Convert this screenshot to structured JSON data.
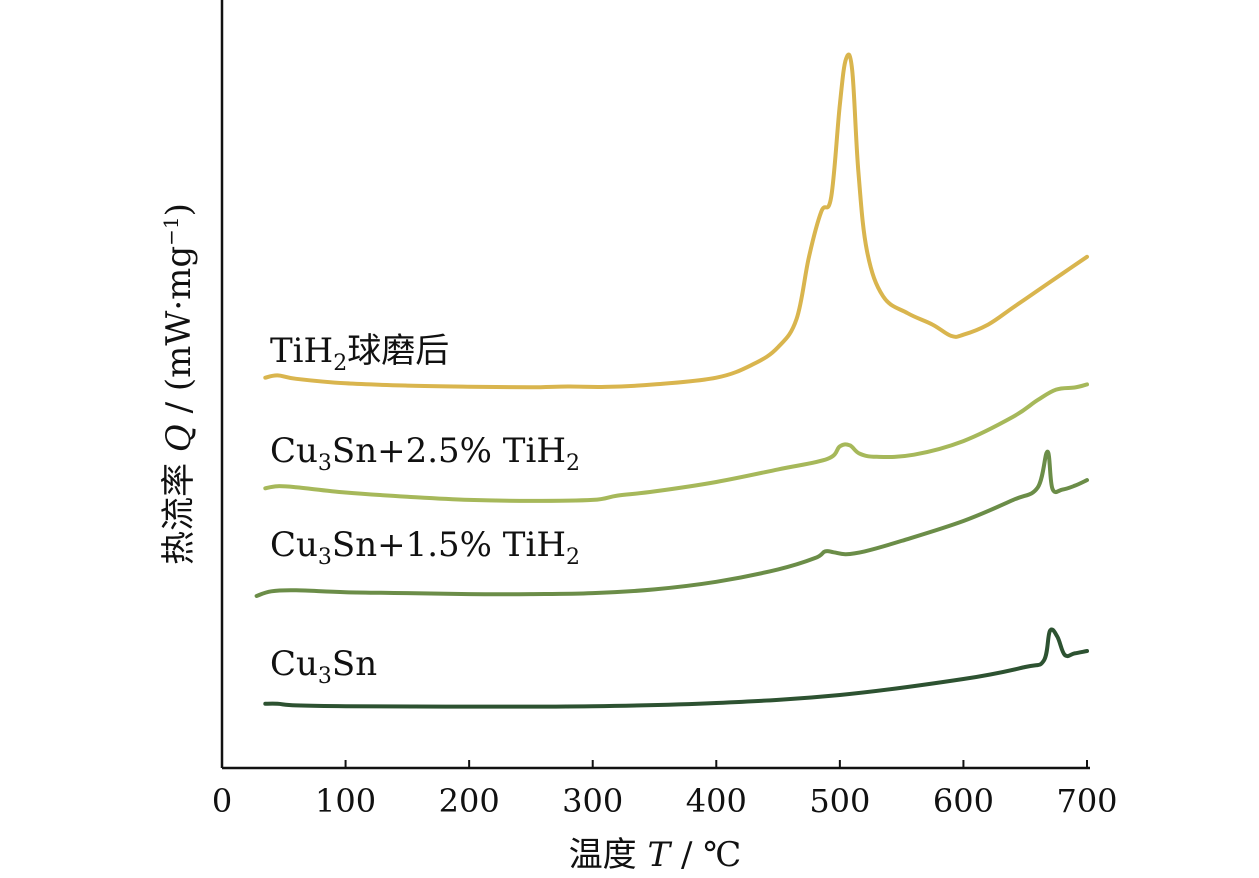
{
  "chart_data": {
    "type": "line",
    "xlabel": "温度 T / ℃",
    "xlabel_parts": {
      "prefix": "温度 ",
      "symbol": "T",
      "suffix": " / ℃"
    },
    "ylabel": "热流率 Q / (mW·mg⁻¹)",
    "ylabel_parts": {
      "prefix": "热流率 ",
      "symbol": "Q",
      "unit": " / (mW·mg",
      "unit_sup": "−1",
      "unit_close": ")"
    },
    "xlim": [
      0,
      700
    ],
    "xticks": [
      0,
      100,
      200,
      300,
      400,
      500,
      600,
      700
    ],
    "grid": false,
    "legend": "inline labels left of curves",
    "series": [
      {
        "name": "TiH2球磨后",
        "label_parts": [
          "TiH",
          "2",
          "球磨后"
        ],
        "color": "#d9b54e",
        "points": [
          [
            35,
            0.18
          ],
          [
            45,
            0.2
          ],
          [
            60,
            0.17
          ],
          [
            100,
            0.13
          ],
          [
            150,
            0.11
          ],
          [
            200,
            0.1
          ],
          [
            250,
            0.095
          ],
          [
            280,
            0.102
          ],
          [
            310,
            0.098
          ],
          [
            350,
            0.12
          ],
          [
            400,
            0.18
          ],
          [
            430,
            0.3
          ],
          [
            450,
            0.45
          ],
          [
            465,
            0.7
          ],
          [
            475,
            1.25
          ],
          [
            485,
            1.65
          ],
          [
            493,
            1.78
          ],
          [
            500,
            2.6
          ],
          [
            505,
            3.0
          ],
          [
            510,
            2.9
          ],
          [
            515,
            2.0
          ],
          [
            522,
            1.3
          ],
          [
            535,
            0.9
          ],
          [
            555,
            0.75
          ],
          [
            575,
            0.65
          ],
          [
            590,
            0.55
          ],
          [
            600,
            0.56
          ],
          [
            620,
            0.65
          ],
          [
            640,
            0.8
          ],
          [
            660,
            0.95
          ],
          [
            680,
            1.1
          ],
          [
            700,
            1.25
          ]
        ]
      },
      {
        "name": "Cu3Sn+2.5% TiH2",
        "label_parts": [
          "Cu",
          "3",
          "Sn+2.5% TiH",
          "2"
        ],
        "color": "#a6b85a",
        "points": [
          [
            35,
            0.14
          ],
          [
            45,
            0.16
          ],
          [
            60,
            0.15
          ],
          [
            100,
            0.1
          ],
          [
            150,
            0.06
          ],
          [
            200,
            0.03
          ],
          [
            250,
            0.02
          ],
          [
            300,
            0.03
          ],
          [
            320,
            0.07
          ],
          [
            350,
            0.11
          ],
          [
            400,
            0.2
          ],
          [
            450,
            0.32
          ],
          [
            490,
            0.42
          ],
          [
            500,
            0.54
          ],
          [
            508,
            0.55
          ],
          [
            516,
            0.47
          ],
          [
            530,
            0.44
          ],
          [
            560,
            0.46
          ],
          [
            600,
            0.59
          ],
          [
            640,
            0.82
          ],
          [
            660,
            0.98
          ],
          [
            675,
            1.08
          ],
          [
            690,
            1.1
          ],
          [
            700,
            1.13
          ]
        ]
      },
      {
        "name": "Cu3Sn+1.5% TiH2",
        "label_parts": [
          "Cu",
          "3",
          "Sn+1.5% TiH",
          "2"
        ],
        "color": "#6b8d48",
        "points": [
          [
            28,
            0.0
          ],
          [
            40,
            0.05
          ],
          [
            60,
            0.06
          ],
          [
            100,
            0.04
          ],
          [
            150,
            0.03
          ],
          [
            200,
            0.02
          ],
          [
            250,
            0.02
          ],
          [
            300,
            0.03
          ],
          [
            350,
            0.07
          ],
          [
            400,
            0.15
          ],
          [
            450,
            0.28
          ],
          [
            480,
            0.4
          ],
          [
            488,
            0.47
          ],
          [
            495,
            0.46
          ],
          [
            505,
            0.44
          ],
          [
            520,
            0.47
          ],
          [
            550,
            0.58
          ],
          [
            600,
            0.79
          ],
          [
            640,
            1.01
          ],
          [
            660,
            1.14
          ],
          [
            668,
            1.52
          ],
          [
            672,
            1.13
          ],
          [
            680,
            1.12
          ],
          [
            690,
            1.16
          ],
          [
            700,
            1.22
          ]
        ]
      },
      {
        "name": "Cu3Sn",
        "label_parts": [
          "Cu",
          "3",
          "Sn"
        ],
        "color": "#2d5231",
        "points": [
          [
            35,
            0.04
          ],
          [
            45,
            0.04
          ],
          [
            60,
            0.02
          ],
          [
            100,
            0.01
          ],
          [
            200,
            0.005
          ],
          [
            300,
            0.01
          ],
          [
            400,
            0.05
          ],
          [
            500,
            0.15
          ],
          [
            600,
            0.35
          ],
          [
            650,
            0.5
          ],
          [
            665,
            0.58
          ],
          [
            670,
            0.95
          ],
          [
            676,
            0.88
          ],
          [
            682,
            0.65
          ],
          [
            690,
            0.67
          ],
          [
            700,
            0.7
          ]
        ]
      }
    ]
  }
}
